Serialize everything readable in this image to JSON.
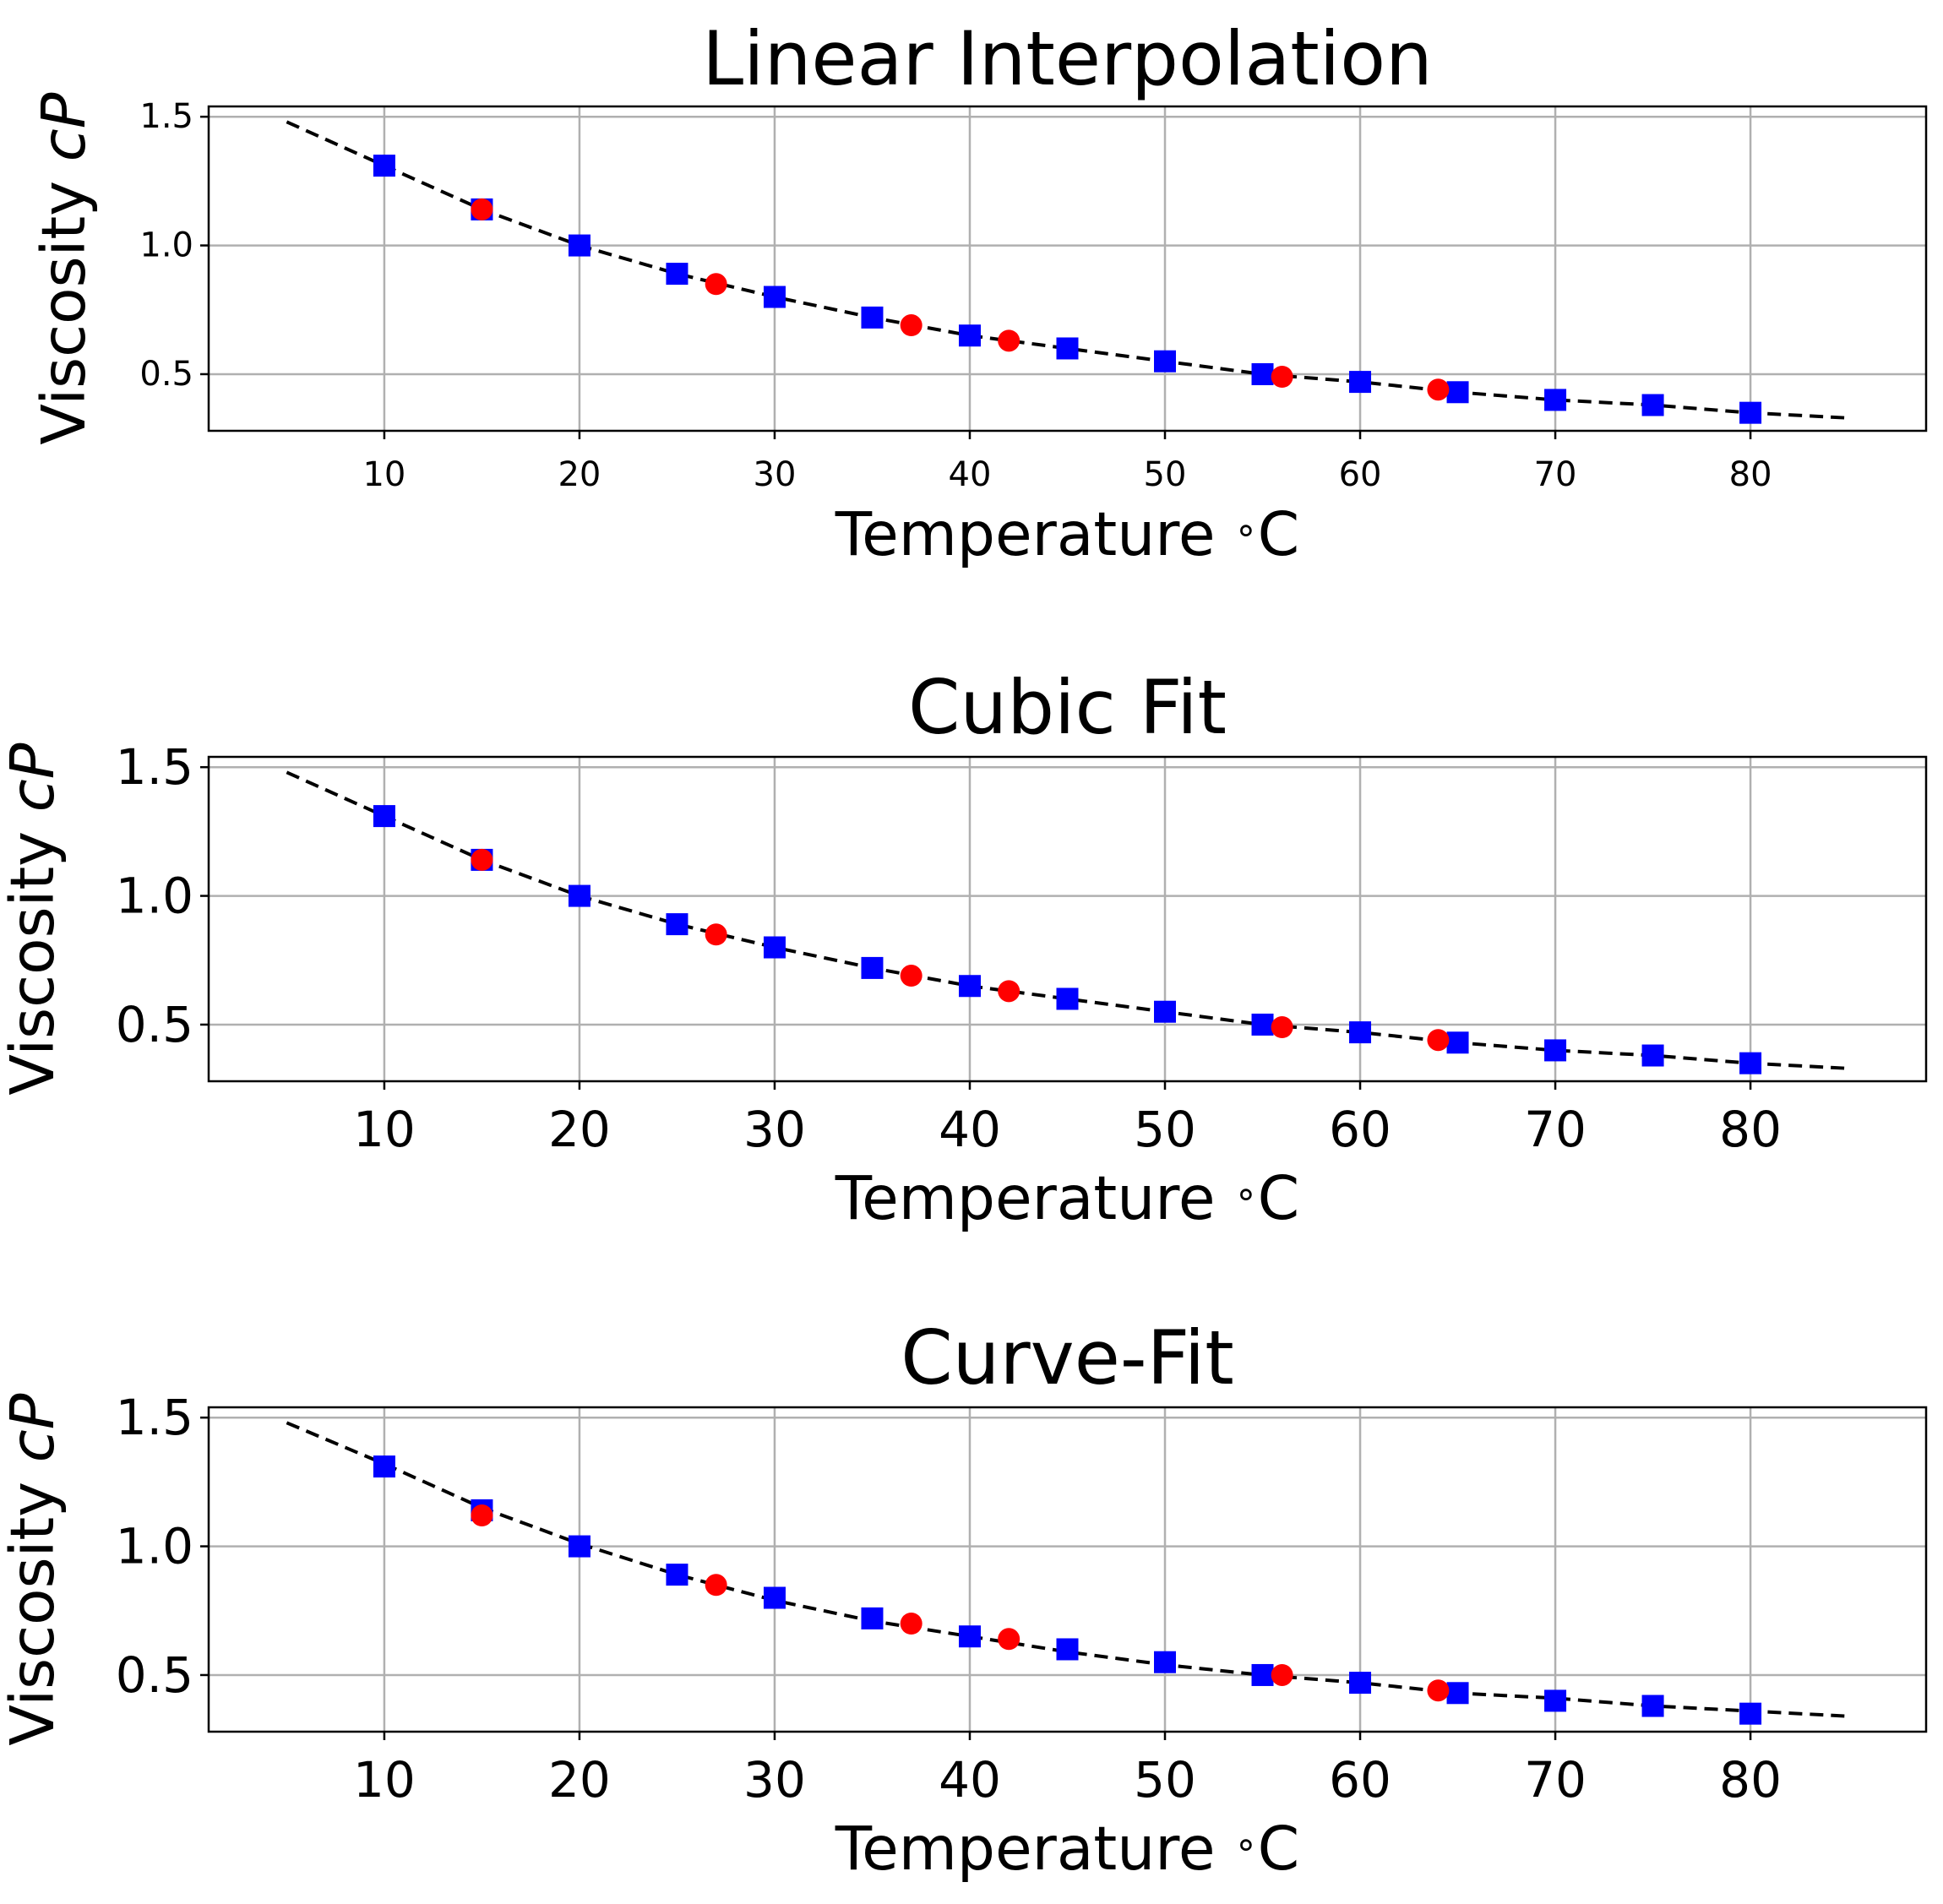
{
  "chart_data": [
    {
      "type": "scatter",
      "title": "Linear Interpolation",
      "xlabel": "Temperature $^\\circ$C",
      "xlabel_text": "Temperature",
      "xlabel_unit": "C",
      "ylabel_text": "Viscosity",
      "ylabel_unit": "cP",
      "xlim": [
        1,
        89
      ],
      "ylim": [
        0.28,
        1.54
      ],
      "xticks": [
        10,
        20,
        30,
        40,
        50,
        60,
        70,
        80
      ],
      "yticks": [
        "0.5",
        "1.0",
        "1.5"
      ],
      "ytick_values": [
        0.5,
        1.0,
        1.5
      ],
      "grid": true,
      "tick_style": "small",
      "series": [
        {
          "marker": "square",
          "color": "#0000ff",
          "x": [
            10,
            15,
            20,
            25,
            30,
            35,
            40,
            45,
            50,
            55,
            60,
            65,
            70,
            75,
            80
          ],
          "y": [
            1.31,
            1.14,
            1.0,
            0.89,
            0.8,
            0.72,
            0.65,
            0.6,
            0.55,
            0.5,
            0.47,
            0.43,
            0.4,
            0.38,
            0.35
          ]
        },
        {
          "marker": "circle",
          "color": "#ff0000",
          "x": [
            15,
            27,
            37,
            42,
            56,
            64
          ],
          "y": [
            1.14,
            0.85,
            0.69,
            0.63,
            0.49,
            0.44
          ]
        },
        {
          "marker": "dashed-line",
          "color": "#000000",
          "x": [
            5,
            10,
            15,
            20,
            25,
            30,
            35,
            40,
            45,
            50,
            55,
            60,
            65,
            70,
            75,
            80,
            85
          ],
          "y": [
            1.48,
            1.31,
            1.14,
            1.0,
            0.89,
            0.8,
            0.72,
            0.65,
            0.6,
            0.55,
            0.5,
            0.47,
            0.43,
            0.4,
            0.38,
            0.35,
            0.33
          ]
        }
      ]
    },
    {
      "type": "scatter",
      "title": "Cubic Fit",
      "xlabel_text": "Temperature",
      "xlabel_unit": "C",
      "ylabel_text": "Viscosity",
      "ylabel_unit": "cP",
      "xlim": [
        1,
        89
      ],
      "ylim": [
        0.28,
        1.54
      ],
      "xticks": [
        10,
        20,
        30,
        40,
        50,
        60,
        70,
        80
      ],
      "yticks": [
        "0.5",
        "1.0",
        "1.5"
      ],
      "ytick_values": [
        0.5,
        1.0,
        1.5
      ],
      "grid": true,
      "tick_style": "large",
      "series": [
        {
          "marker": "square",
          "color": "#0000ff",
          "x": [
            10,
            15,
            20,
            25,
            30,
            35,
            40,
            45,
            50,
            55,
            60,
            65,
            70,
            75,
            80
          ],
          "y": [
            1.31,
            1.14,
            1.0,
            0.89,
            0.8,
            0.72,
            0.65,
            0.6,
            0.55,
            0.5,
            0.47,
            0.43,
            0.4,
            0.38,
            0.35
          ]
        },
        {
          "marker": "circle",
          "color": "#ff0000",
          "x": [
            15,
            27,
            37,
            42,
            56,
            64
          ],
          "y": [
            1.14,
            0.85,
            0.69,
            0.63,
            0.49,
            0.44
          ]
        },
        {
          "marker": "dashed-line",
          "color": "#000000",
          "x": [
            5,
            10,
            15,
            20,
            25,
            30,
            35,
            40,
            45,
            50,
            55,
            60,
            65,
            70,
            75,
            80,
            85
          ],
          "y": [
            1.48,
            1.31,
            1.14,
            1.0,
            0.89,
            0.8,
            0.72,
            0.65,
            0.6,
            0.55,
            0.5,
            0.47,
            0.43,
            0.4,
            0.38,
            0.35,
            0.33
          ]
        }
      ]
    },
    {
      "type": "scatter",
      "title": "Curve-Fit",
      "xlabel_text": "Temperature",
      "xlabel_unit": "C",
      "ylabel_text": "Viscosity",
      "ylabel_unit": "cP",
      "xlim": [
        1,
        89
      ],
      "ylim": [
        0.28,
        1.54
      ],
      "xticks": [
        10,
        20,
        30,
        40,
        50,
        60,
        70,
        80
      ],
      "yticks": [
        "0.5",
        "1.0",
        "1.5"
      ],
      "ytick_values": [
        0.5,
        1.0,
        1.5
      ],
      "grid": true,
      "tick_style": "large",
      "series": [
        {
          "marker": "square",
          "color": "#0000ff",
          "x": [
            10,
            15,
            20,
            25,
            30,
            35,
            40,
            45,
            50,
            55,
            60,
            65,
            70,
            75,
            80
          ],
          "y": [
            1.31,
            1.14,
            1.0,
            0.89,
            0.8,
            0.72,
            0.65,
            0.6,
            0.55,
            0.5,
            0.47,
            0.43,
            0.4,
            0.38,
            0.35
          ]
        },
        {
          "marker": "circle",
          "color": "#ff0000",
          "x": [
            15,
            27,
            37,
            42,
            56,
            64
          ],
          "y": [
            1.12,
            0.85,
            0.7,
            0.64,
            0.5,
            0.44
          ]
        },
        {
          "marker": "dashed-line",
          "color": "#000000",
          "x": [
            5,
            10,
            15,
            20,
            25,
            30,
            35,
            40,
            45,
            50,
            55,
            60,
            65,
            70,
            75,
            80,
            85
          ],
          "y": [
            1.48,
            1.32,
            1.15,
            1.01,
            0.89,
            0.79,
            0.71,
            0.65,
            0.59,
            0.54,
            0.5,
            0.47,
            0.43,
            0.41,
            0.38,
            0.36,
            0.34
          ]
        }
      ]
    }
  ]
}
